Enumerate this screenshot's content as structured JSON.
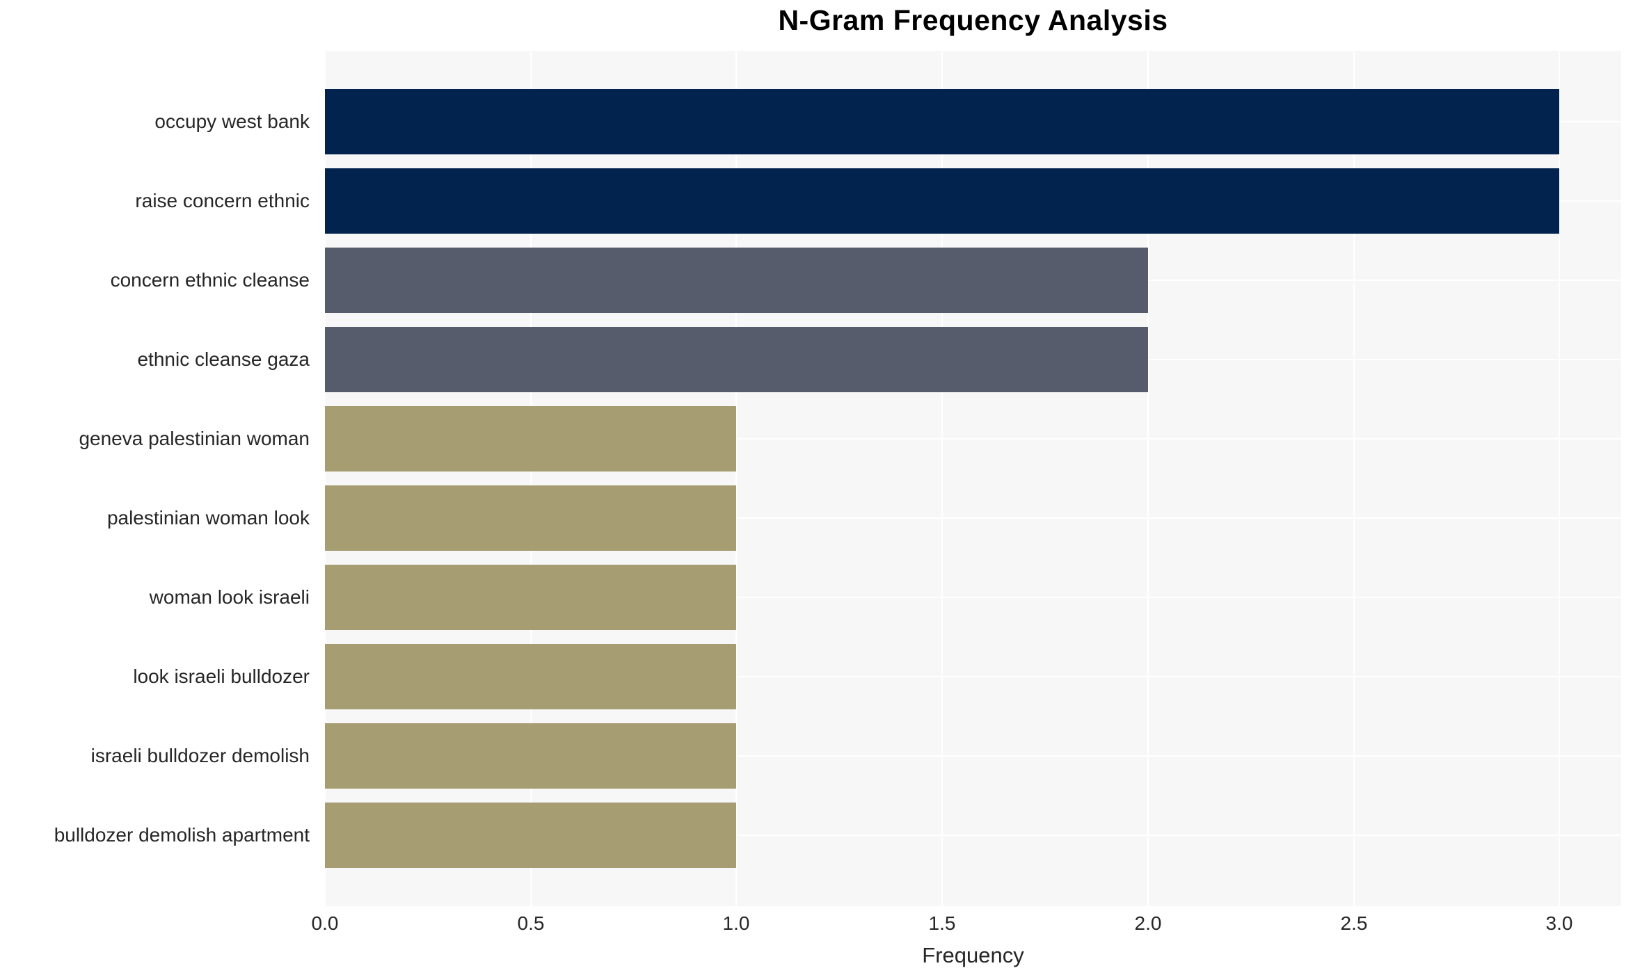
{
  "chart_data": {
    "type": "bar",
    "orientation": "horizontal",
    "title": "N-Gram Frequency Analysis",
    "xlabel": "Frequency",
    "ylabel": "",
    "categories": [
      "occupy west bank",
      "raise concern ethnic",
      "concern ethnic cleanse",
      "ethnic cleanse gaza",
      "geneva palestinian woman",
      "palestinian woman look",
      "woman look israeli",
      "look israeli bulldozer",
      "israeli bulldozer demolish",
      "bulldozer demolish apartment"
    ],
    "values": [
      3,
      3,
      2,
      2,
      1,
      1,
      1,
      1,
      1,
      1
    ],
    "xlim": [
      0,
      3.15
    ],
    "x_ticks": [
      0.0,
      0.5,
      1.0,
      1.5,
      2.0,
      2.5,
      3.0
    ],
    "x_tick_labels": [
      "0.0",
      "0.5",
      "1.0",
      "1.5",
      "2.0",
      "2.5",
      "3.0"
    ],
    "grid": true,
    "legend_position": "none",
    "colors": {
      "bar_by_value": {
        "3": "#02234d",
        "2": "#565c6b",
        "1": "#a69d72"
      },
      "plot_background": "#f7f7f7",
      "grid_line": "#ffffff",
      "text": "#262626",
      "title_text": "#000000",
      "page_background": "#ffffff"
    }
  }
}
